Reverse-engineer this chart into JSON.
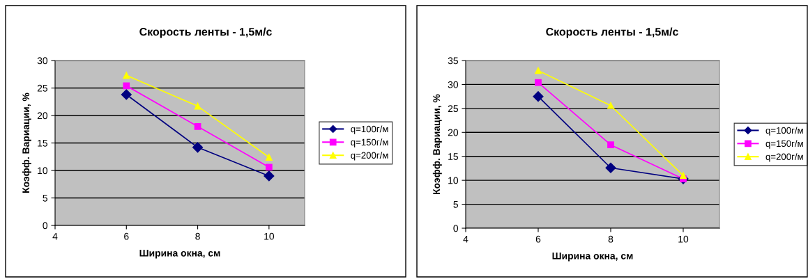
{
  "chart_data": [
    {
      "type": "line",
      "title": "Скорость ленты - 1,5м/с",
      "xlabel": "Ширина окна, см",
      "ylabel": "Коэфф. Вариации, %",
      "x": [
        6,
        8,
        10
      ],
      "xlim": [
        4,
        11
      ],
      "xticks": [
        4,
        6,
        8,
        10
      ],
      "ylim": [
        0,
        30
      ],
      "yticks": [
        0,
        5,
        10,
        15,
        20,
        25,
        30
      ],
      "grid": "y",
      "legend": "right",
      "series": [
        {
          "name": "q=100г/м",
          "color": "#000080",
          "marker": "diamond",
          "values": [
            23.8,
            14.2,
            9.0
          ]
        },
        {
          "name": "q=150г/м",
          "color": "#ff00ff",
          "marker": "square",
          "values": [
            25.4,
            18.0,
            10.6
          ]
        },
        {
          "name": "q=200г/м",
          "color": "#ffff00",
          "marker": "triangle",
          "values": [
            27.3,
            21.7,
            12.4
          ]
        }
      ]
    },
    {
      "type": "line",
      "title": "Скорость ленты - 1,5м/с",
      "xlabel": "Ширина окна, см",
      "ylabel": "Коэфф. Вариации, %",
      "x": [
        6,
        8,
        10
      ],
      "xlim": [
        4,
        11
      ],
      "xticks": [
        4,
        6,
        8,
        10
      ],
      "ylim": [
        0,
        35
      ],
      "yticks": [
        0,
        5,
        10,
        15,
        20,
        25,
        30,
        35
      ],
      "grid": "y",
      "legend": "right",
      "series": [
        {
          "name": "q=100г/м",
          "color": "#000080",
          "marker": "diamond",
          "values": [
            27.5,
            12.6,
            10.3
          ]
        },
        {
          "name": "q=150г/м",
          "color": "#ff00ff",
          "marker": "square",
          "values": [
            30.4,
            17.4,
            10.3
          ]
        },
        {
          "name": "q=200г/м",
          "color": "#ffff00",
          "marker": "triangle",
          "values": [
            32.9,
            25.6,
            11.0
          ]
        }
      ]
    }
  ]
}
